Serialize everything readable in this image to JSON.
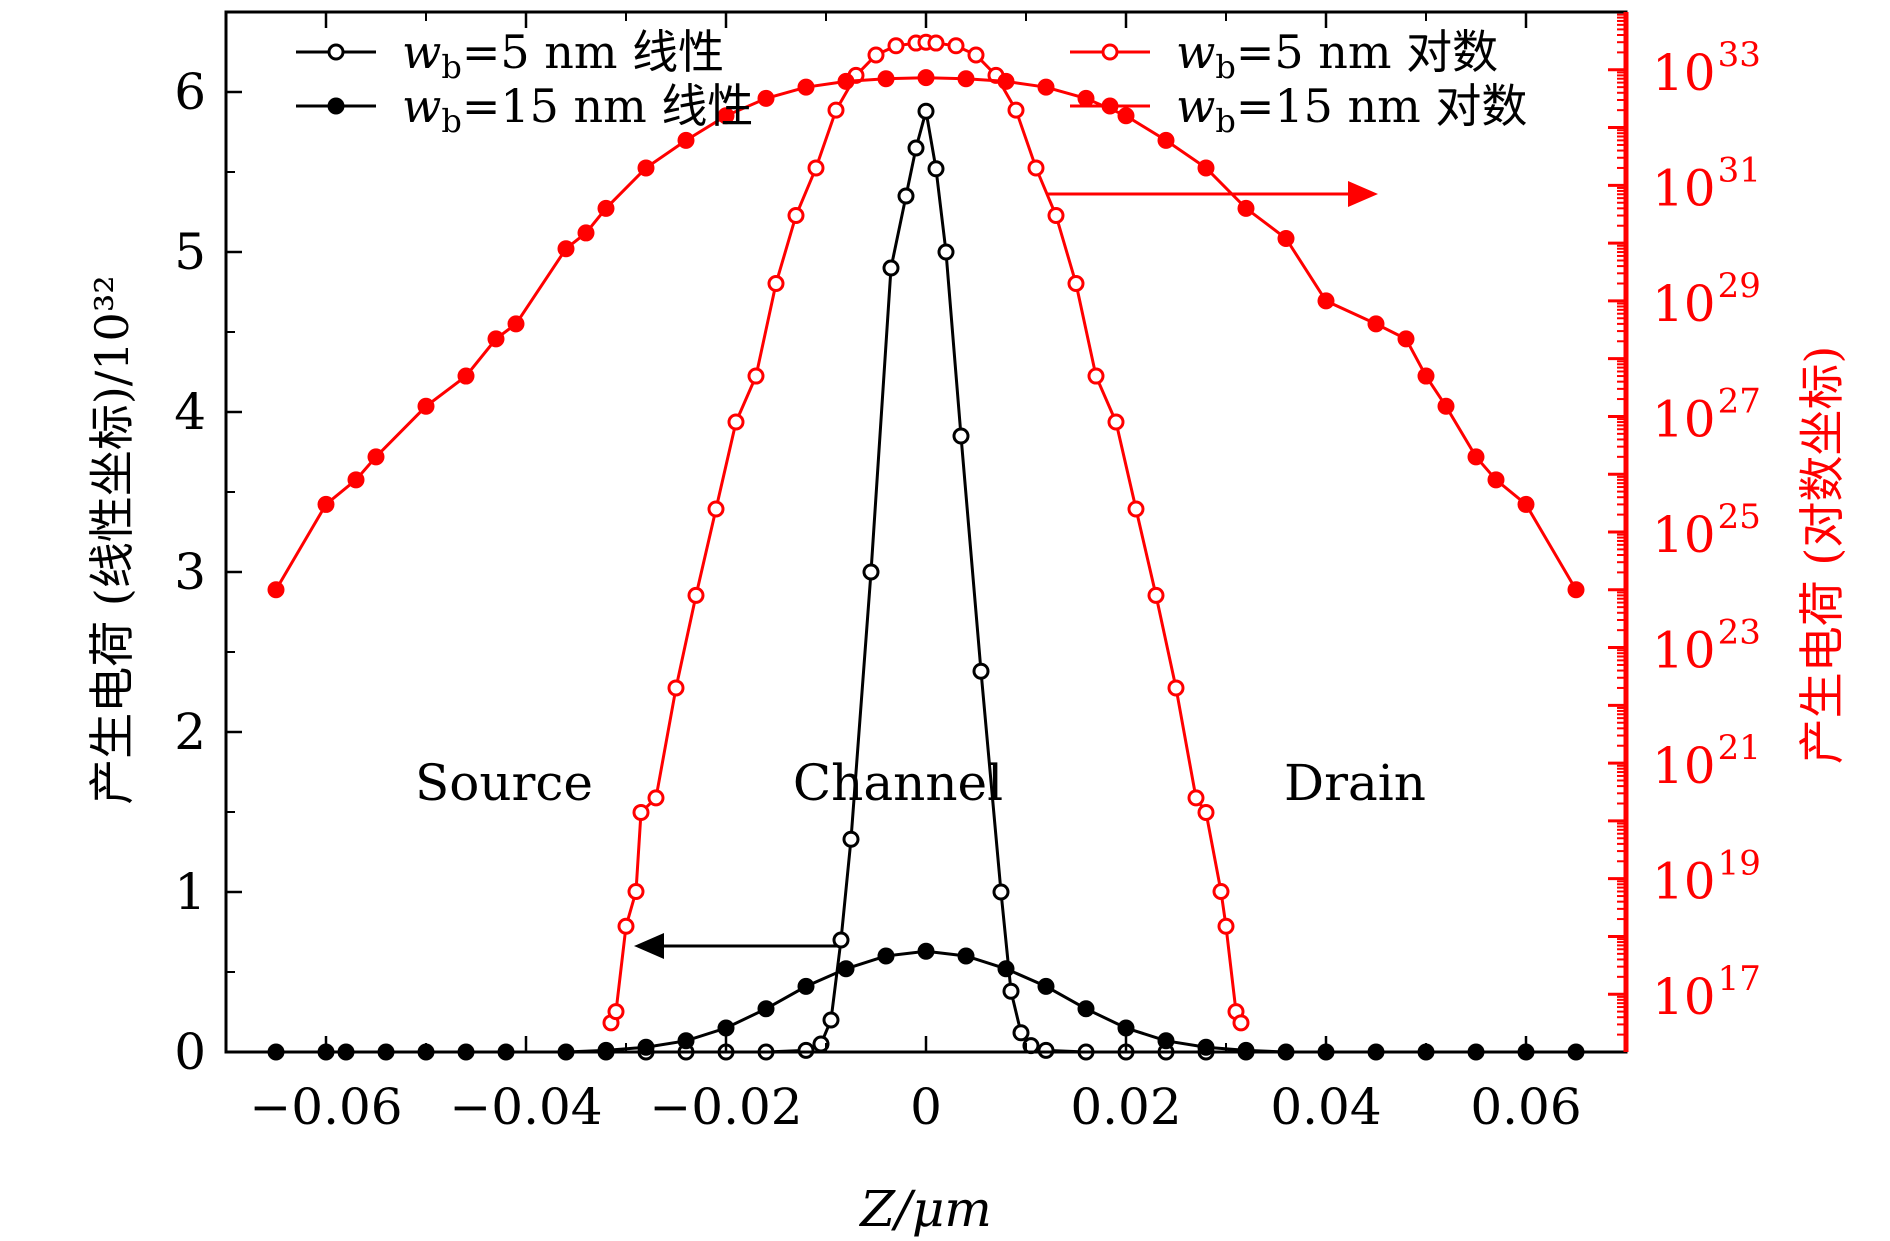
{
  "chart_data": {
    "type": "line",
    "xlabel": "Z/μm",
    "ylabel": "产生电荷 (线性坐标)/10³²",
    "y2label": "产生电荷 (对数坐标)",
    "xlim": [
      -0.07,
      0.07
    ],
    "ylim": [
      0,
      6.5
    ],
    "y2lim": [
      1e+16,
      1e+34
    ],
    "y2scale": "log",
    "x_ticks": [
      "−0.06",
      "−0.04",
      "−0.02",
      "0",
      "0.02",
      "0.04",
      "0.06"
    ],
    "y_ticks": [
      "0",
      "1",
      "2",
      "3",
      "4",
      "5",
      "6"
    ],
    "y2_ticks": [
      {
        "base": "10",
        "exp": "17"
      },
      {
        "base": "10",
        "exp": "19"
      },
      {
        "base": "10",
        "exp": "21"
      },
      {
        "base": "10",
        "exp": "23"
      },
      {
        "base": "10",
        "exp": "25"
      },
      {
        "base": "10",
        "exp": "27"
      },
      {
        "base": "10",
        "exp": "29"
      },
      {
        "base": "10",
        "exp": "31"
      },
      {
        "base": "10",
        "exp": "33"
      }
    ],
    "legend": [
      {
        "sym": "w",
        "sub": "b",
        "text": "=5 nm 线性"
      },
      {
        "sym": "w",
        "sub": "b",
        "text": "=15 nm 线性"
      },
      {
        "sym": "w",
        "sub": "b",
        "text": "=5 nm 对数"
      },
      {
        "sym": "w",
        "sub": "b",
        "text": "=15 nm 对数"
      }
    ],
    "annotations": [
      "Source",
      "Channel",
      "Drain"
    ],
    "colors": {
      "linear": "#000000",
      "log": "#ff0000"
    },
    "series": [
      {
        "id": "linear_5nm",
        "axis": "left",
        "marker": "open",
        "x": [
          -0.032,
          -0.028,
          -0.024,
          -0.02,
          -0.016,
          -0.012,
          -0.0105,
          -0.0095,
          -0.0085,
          -0.0075,
          -0.0055,
          -0.0035,
          -0.002,
          -0.001,
          0,
          0.001,
          0.002,
          0.0035,
          0.0055,
          0.0075,
          0.0085,
          0.0095,
          0.0105,
          0.012,
          0.016,
          0.02,
          0.024,
          0.028,
          0.032
        ],
        "y": [
          0,
          0,
          0,
          0,
          0,
          0.01,
          0.05,
          0.2,
          0.7,
          1.33,
          3.0,
          4.9,
          5.35,
          5.65,
          5.88,
          5.52,
          5.0,
          3.85,
          2.38,
          1.0,
          0.38,
          0.12,
          0.04,
          0.01,
          0,
          0,
          0,
          0,
          0
        ]
      },
      {
        "id": "linear_15nm",
        "axis": "left",
        "marker": "filled",
        "x": [
          -0.065,
          -0.06,
          -0.058,
          -0.054,
          -0.05,
          -0.046,
          -0.042,
          -0.036,
          -0.032,
          -0.028,
          -0.024,
          -0.02,
          -0.016,
          -0.012,
          -0.008,
          -0.004,
          0,
          0.004,
          0.008,
          0.012,
          0.016,
          0.02,
          0.024,
          0.028,
          0.032,
          0.036,
          0.04,
          0.045,
          0.05,
          0.055,
          0.06,
          0.065
        ],
        "y": [
          0,
          0,
          0,
          0,
          0,
          0,
          0,
          0,
          0.01,
          0.03,
          0.07,
          0.15,
          0.27,
          0.41,
          0.52,
          0.6,
          0.63,
          0.6,
          0.52,
          0.41,
          0.27,
          0.15,
          0.07,
          0.03,
          0.01,
          0,
          0,
          0,
          0,
          0,
          0,
          0
        ]
      },
      {
        "id": "log_5nm",
        "axis": "right",
        "marker": "open",
        "x": [
          -0.0315,
          -0.031,
          -0.03,
          -0.029,
          -0.0285,
          -0.027,
          -0.025,
          -0.023,
          -0.021,
          -0.019,
          -0.017,
          -0.015,
          -0.013,
          -0.011,
          -0.009,
          -0.007,
          -0.005,
          -0.003,
          -0.001,
          0,
          0.001,
          0.003,
          0.005,
          0.007,
          0.009,
          0.011,
          0.013,
          0.015,
          0.017,
          0.019,
          0.021,
          0.023,
          0.025,
          0.027,
          0.028,
          0.0295,
          0.03,
          0.031,
          0.0315
        ],
        "y": [
          3.2e+16,
          5e+16,
          1.5e+18,
          6e+18,
          1.4e+20,
          2.5e+20,
          2e+22,
          8e+23,
          2.5e+25,
          8e+26,
          5e+27,
          2e+29,
          3e+30,
          2e+31,
          2e+32,
          8e+32,
          1.8e+33,
          2.6e+33,
          2.9e+33,
          3e+33,
          2.9e+33,
          2.6e+33,
          1.8e+33,
          8e+32,
          2e+32,
          2e+31,
          3e+30,
          2e+29,
          5e+27,
          8e+26,
          2.5e+25,
          8e+23,
          2e+22,
          2.5e+20,
          1.4e+20,
          6e+18,
          1.5e+18,
          5e+16,
          3.2e+16
        ]
      },
      {
        "id": "log_15nm",
        "axis": "right",
        "marker": "filled",
        "x": [
          -0.065,
          -0.06,
          -0.057,
          -0.055,
          -0.05,
          -0.046,
          -0.043,
          -0.041,
          -0.036,
          -0.034,
          -0.032,
          -0.028,
          -0.024,
          -0.02,
          -0.016,
          -0.012,
          -0.008,
          -0.004,
          0,
          0.004,
          0.008,
          0.012,
          0.016,
          0.02,
          0.024,
          0.028,
          0.032,
          0.036,
          0.04,
          0.045,
          0.048,
          0.05,
          0.052,
          0.055,
          0.057,
          0.06,
          0.065
        ],
        "y": [
          1e+24,
          3e+25,
          8e+25,
          2e+26,
          1.5e+27,
          5e+27,
          2.2e+28,
          4e+28,
          8e+29,
          1.5e+30,
          4e+30,
          2e+31,
          6e+31,
          1.6e+32,
          3.2e+32,
          5e+32,
          6.3e+32,
          7e+32,
          7.3e+32,
          7e+32,
          6.3e+32,
          5e+32,
          3.2e+32,
          1.6e+32,
          6e+31,
          2e+31,
          4e+30,
          1.2e+30,
          1e+29,
          4e+28,
          2.2e+28,
          5e+27,
          1.5e+27,
          2e+26,
          8e+25,
          3e+25,
          1e+24
        ]
      }
    ]
  }
}
